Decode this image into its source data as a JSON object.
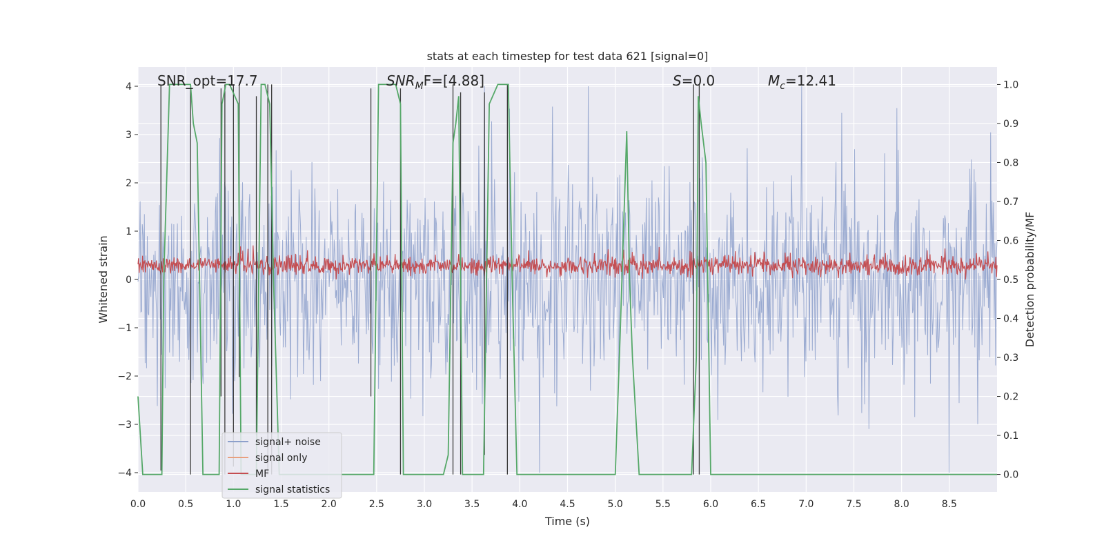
{
  "chart_data": {
    "type": "line",
    "title": "stats at each timestep for test data 621 [signal=0]",
    "xlabel": "Time (s)",
    "ylabel": "Whitened strain",
    "y2label": "Detection probability/MF",
    "xlim": [
      0.0,
      9.0
    ],
    "ylim": [
      -4.4,
      4.4
    ],
    "y2lim": [
      -0.045,
      1.045
    ],
    "xticks": [
      "0.0",
      "0.5",
      "1.0",
      "1.5",
      "2.0",
      "2.5",
      "3.0",
      "3.5",
      "4.0",
      "4.5",
      "5.0",
      "5.5",
      "6.0",
      "6.5",
      "7.0",
      "7.5",
      "8.0",
      "8.5"
    ],
    "yticks": [
      "−4",
      "−3",
      "−2",
      "−1",
      "0",
      "1",
      "2",
      "3",
      "4"
    ],
    "y2ticks": [
      "0.0",
      "0.1",
      "0.2",
      "0.3",
      "0.4",
      "0.5",
      "0.6",
      "0.7",
      "0.8",
      "0.9",
      "1.0"
    ],
    "annotations": {
      "snr_opt": "SNR_opt=17.7",
      "snr_mf_prefix": "SNR",
      "snr_mf_sub": "M",
      "snr_mf_suffix": "F=[4.88]",
      "s_name": "S",
      "s_value": "=0.0",
      "mc_name": "M",
      "mc_sub": "c",
      "mc_value": "=12.41"
    },
    "legend": {
      "position": "lower-left",
      "entries": [
        {
          "label": "signal+ noise",
          "color": "#8da0cb"
        },
        {
          "label": "signal only",
          "color": "#e8a07f"
        },
        {
          "label": "MF",
          "color": "#c44e52"
        },
        {
          "label": "signal statistics",
          "color": "#55a868"
        }
      ]
    },
    "series": [
      {
        "name": "signal+ noise",
        "axis": "left",
        "color": "#8da0cb",
        "style": "dense noise, amplitude about ±1.6 with spikes to ±4",
        "samples": 1200,
        "seed": 621
      },
      {
        "name": "MF",
        "axis": "right",
        "color": "#c44e52",
        "style": "dense noise between 0.50 and 0.58",
        "samples": 1500,
        "seed": 17
      },
      {
        "name": "signal statistics",
        "axis": "right",
        "color": "#55a868",
        "x": [
          0.0,
          0.05,
          0.25,
          0.27,
          0.33,
          0.55,
          0.58,
          0.62,
          0.68,
          0.72,
          0.85,
          0.88,
          0.92,
          0.96,
          1.05,
          1.08,
          1.12,
          1.24,
          1.29,
          1.33,
          1.38,
          1.42,
          1.48,
          1.52,
          2.42,
          2.47,
          2.52,
          2.7,
          2.75,
          2.78,
          3.2,
          3.25,
          3.3,
          3.33,
          3.36,
          3.4,
          3.45,
          3.55,
          3.6,
          3.62,
          3.68,
          3.77,
          3.88,
          3.92,
          3.97,
          4.5,
          5.0,
          5.05,
          5.12,
          5.15,
          5.18,
          5.25,
          5.3,
          5.45,
          5.6,
          5.8,
          5.85,
          5.87,
          5.9,
          5.95,
          6.0,
          6.5,
          7.0,
          7.5,
          8.0,
          8.5,
          9.0
        ],
        "y": [
          0.2,
          0.0,
          0.0,
          0.5,
          1.0,
          1.0,
          0.9,
          0.85,
          0.0,
          0.0,
          0.0,
          0.95,
          1.0,
          1.0,
          0.95,
          0.0,
          0.0,
          0.0,
          1.0,
          1.0,
          0.95,
          0.5,
          0.0,
          0.0,
          0.0,
          0.0,
          1.0,
          1.0,
          0.95,
          0.0,
          0.0,
          0.05,
          0.85,
          0.9,
          0.97,
          0.0,
          0.0,
          0.0,
          0.0,
          0.0,
          0.95,
          1.0,
          1.0,
          0.5,
          0.0,
          0.0,
          0.0,
          0.35,
          0.88,
          0.5,
          0.3,
          0.0,
          0.0,
          0.0,
          0.0,
          0.0,
          0.3,
          0.97,
          0.9,
          0.8,
          0.0,
          0.0,
          0.0,
          0.0,
          0.0,
          0.0,
          0.0
        ]
      },
      {
        "name": "detection markers",
        "axis": "right",
        "color": "#3a3a3a",
        "x": [
          0.24,
          0.55,
          0.87,
          0.91,
          1.0,
          1.06,
          1.24,
          1.36,
          1.4,
          2.44,
          2.75,
          3.3,
          3.38,
          3.63,
          3.87,
          5.82,
          5.88
        ],
        "top": [
          1.0,
          1.0,
          0.99,
          1.0,
          1.0,
          1.0,
          0.97,
          1.0,
          1.0,
          0.99,
          0.99,
          1.0,
          0.98,
          0.98,
          1.0,
          1.0,
          1.0
        ],
        "bottom": [
          0.01,
          0.0,
          0.2,
          0.0,
          0.02,
          0.25,
          0.1,
          0.0,
          0.0,
          0.2,
          0.0,
          0.0,
          0.0,
          0.05,
          0.0,
          0.0,
          0.0
        ]
      }
    ]
  }
}
